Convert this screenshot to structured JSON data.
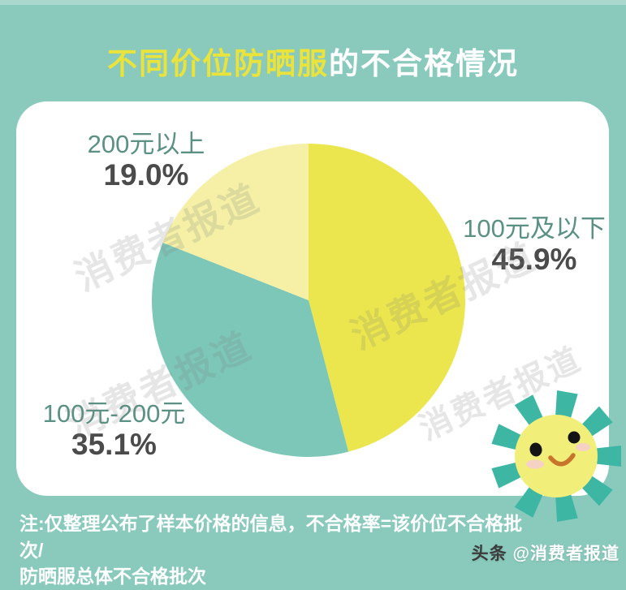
{
  "header": {
    "title_highlight": "不同价位防晒服",
    "title_rest": "的不合格情况"
  },
  "chart_data": {
    "type": "pie",
    "title": "不同价位防晒服的不合格情况",
    "start_angle_deg": 0,
    "direction": "clockwise",
    "total": 100,
    "slices": [
      {
        "label": "100元及以下",
        "value": 45.9,
        "value_label": "45.9%",
        "color": "#ebe64d"
      },
      {
        "label": "100元-200元",
        "value": 35.1,
        "value_label": "35.1%",
        "color": "#7cc7b8"
      },
      {
        "label": "200元以上",
        "value": 19.0,
        "value_label": "19.0%",
        "color": "#f5f0a5"
      }
    ],
    "legend_position": "labels-around-pie",
    "grid": false
  },
  "footnote": {
    "line1": "注:仅整理公布了样本价格的信息，不合格率=该价位不合格批次/",
    "line2": "防晒服总体不合格批次"
  },
  "watermark": {
    "diagonal_text": "消费者报道",
    "credit_prefix": "头条",
    "credit_handle": "@消费者报道"
  },
  "colors": {
    "background": "#89cabd",
    "card": "#ffffff",
    "title_highlight": "#e9e33c",
    "title_rest": "#ffffff",
    "label_name": "#5a9184",
    "label_value": "#4b4b4b",
    "note_text": "#ffffff",
    "sun_body": "#f2ee7a",
    "sun_ray": "#3db7a4",
    "credit_prefix": "#3c3c3c"
  }
}
